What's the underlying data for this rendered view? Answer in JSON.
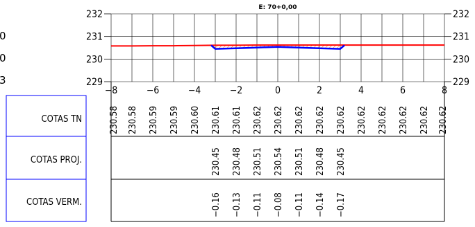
{
  "section_title": "E: 70+0,00",
  "left_partial_labels": [
    "0",
    "0",
    "3"
  ],
  "row_labels": {
    "tn": "COTAS TN",
    "proj": "COTAS PROJ.",
    "verm": "COTAS VERM."
  },
  "colors": {
    "grid": "#000000",
    "axis_labels": "#000000",
    "label_box": "#0000ff",
    "terrain_line": "#ff0000",
    "project_line": "#0000ff",
    "hatch": "#ff6a00"
  },
  "chart_data": {
    "type": "line",
    "title": "E: 70+0,00",
    "xlim": [
      -8,
      8
    ],
    "ylim": [
      229,
      232
    ],
    "x_ticks": [
      "-8",
      "-6",
      "-4",
      "-2",
      "0",
      "2",
      "4",
      "6",
      "8"
    ],
    "y_ticks": [
      "229",
      "230",
      "231",
      "232"
    ],
    "grid": true,
    "series": [
      {
        "id": "terrain",
        "points": [
          [
            -8,
            230.58
          ],
          [
            -7,
            230.58
          ],
          [
            -6,
            230.59
          ],
          [
            -5,
            230.59
          ],
          [
            -4,
            230.6
          ],
          [
            -3,
            230.61
          ],
          [
            -2,
            230.61
          ],
          [
            -1,
            230.62
          ],
          [
            0,
            230.62
          ],
          [
            1,
            230.62
          ],
          [
            2,
            230.62
          ],
          [
            3,
            230.62
          ],
          [
            4,
            230.62
          ],
          [
            5,
            230.62
          ],
          [
            6,
            230.62
          ],
          [
            7,
            230.62
          ],
          [
            8,
            230.62
          ]
        ]
      },
      {
        "id": "project",
        "points": [
          [
            -3.2,
            230.61
          ],
          [
            -3.0,
            230.45
          ],
          [
            -2,
            230.48
          ],
          [
            -1,
            230.51
          ],
          [
            0,
            230.54
          ],
          [
            1,
            230.51
          ],
          [
            2,
            230.48
          ],
          [
            3.0,
            230.45
          ],
          [
            3.2,
            230.61
          ]
        ]
      }
    ],
    "table": {
      "cotas_tn": {
        "x": [
          -8,
          -7,
          -6,
          -5,
          -4,
          -3,
          -2,
          -1,
          0,
          1,
          2,
          3,
          4,
          5,
          6,
          7,
          8
        ],
        "values": [
          "230.58",
          "230.58",
          "230.59",
          "230.59",
          "230.60",
          "230.61",
          "230.61",
          "230.62",
          "230.62",
          "230.62",
          "230.62",
          "230.62",
          "230.62",
          "230.62",
          "230.62",
          "230.62",
          "230.62"
        ]
      },
      "cotas_proj": {
        "x": [
          -3,
          -2,
          -1,
          0,
          1,
          2,
          3
        ],
        "values": [
          "230.45",
          "230.48",
          "230.51",
          "230.54",
          "230.51",
          "230.48",
          "230.45"
        ]
      },
      "cotas_verm": {
        "x": [
          -3,
          -2,
          -1,
          0,
          1,
          2,
          3
        ],
        "values": [
          "-0.16",
          "-0.13",
          "-0.11",
          "-0.08",
          "-0.11",
          "-0.14",
          "-0.17"
        ]
      }
    }
  }
}
